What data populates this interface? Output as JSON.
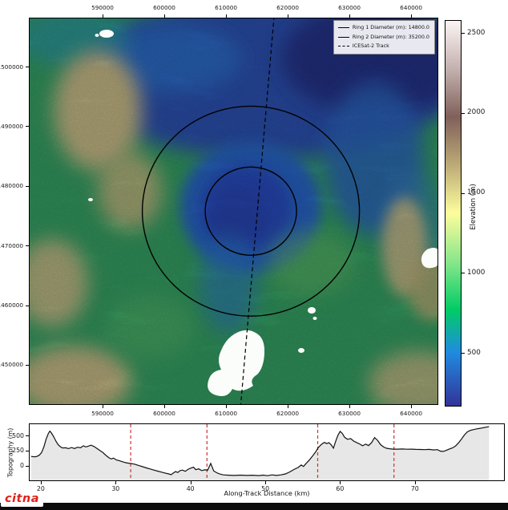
{
  "colors": {
    "ring": "#000000",
    "track": "#000000",
    "crossing_line": "#cc3333",
    "profile_line": "#111111",
    "profile_fill": "#e7e7e7",
    "watermark_red": "#e32119",
    "footer_bar": "#0c0c0c",
    "terrain_low": "#333399",
    "terrain_mid": "#00cc66",
    "terrain_high": "#ffffff"
  },
  "watermark": {
    "text": "citna"
  },
  "map": {
    "legend": {
      "items": [
        {
          "label": "Ring 1 Diameter (m): 14800.0",
          "style": "solid"
        },
        {
          "label": "Ring 2 Diameter (m): 35200.0",
          "style": "solid"
        },
        {
          "label": "ICESat-2 Track",
          "style": "dashed"
        }
      ]
    }
  },
  "colorbar": {
    "label": "Elevation (m)",
    "min": 165,
    "max": 2580,
    "ticks": [
      500,
      1000,
      1500,
      2000,
      2500
    ]
  },
  "chart_data": [
    {
      "type": "heatmap",
      "title": "",
      "description": "Shaded-relief elevation map with impact-structure rings and ICESat-2 ground track",
      "xlim": [
        578050,
        644400
      ],
      "ylim": [
        1443270,
        1508200
      ],
      "x_ticks": [
        590000,
        600000,
        610000,
        620000,
        630000,
        640000
      ],
      "y_ticks": [
        1500000,
        1490000,
        1480000,
        1470000,
        1460000,
        1450000
      ],
      "rings": {
        "center_x": 613900,
        "center_y": 1475900,
        "ring1_diameter_m": 14800.0,
        "ring2_diameter_m": 35200.0
      },
      "track": {
        "label": "ICESat-2 Track",
        "x_at_top": 617670,
        "x_at_bottom": 612215
      },
      "colorbar_label": "Elevation (m)",
      "legend_position": "upper right",
      "grid": false
    },
    {
      "type": "line",
      "xlabel": "Along-Track Distance (km)",
      "ylabel": "Topography (m)",
      "xlim": [
        18.4,
        81.8
      ],
      "ylim": [
        -233,
        700
      ],
      "x_ticks": [
        20,
        30,
        40,
        50,
        60,
        70
      ],
      "y_ticks": [
        0,
        250,
        500
      ],
      "ring_crossings_km": [
        31.9,
        42.1,
        56.9,
        67.1
      ],
      "points": [
        [
          18.6,
          165
        ],
        [
          19.0,
          158
        ],
        [
          19.3,
          162
        ],
        [
          19.7,
          185
        ],
        [
          20.0,
          230
        ],
        [
          20.3,
          320
        ],
        [
          20.6,
          450
        ],
        [
          20.9,
          545
        ],
        [
          21.1,
          585
        ],
        [
          21.3,
          555
        ],
        [
          21.6,
          495
        ],
        [
          21.9,
          420
        ],
        [
          22.2,
          360
        ],
        [
          22.5,
          325
        ],
        [
          22.8,
          305
        ],
        [
          23.2,
          308
        ],
        [
          23.6,
          295
        ],
        [
          24.0,
          312
        ],
        [
          24.4,
          296
        ],
        [
          24.8,
          318
        ],
        [
          25.2,
          308
        ],
        [
          25.6,
          342
        ],
        [
          25.9,
          322
        ],
        [
          26.3,
          338
        ],
        [
          26.6,
          352
        ],
        [
          27.0,
          330
        ],
        [
          27.4,
          298
        ],
        [
          27.8,
          262
        ],
        [
          28.2,
          228
        ],
        [
          28.6,
          182
        ],
        [
          29.0,
          142
        ],
        [
          29.3,
          122
        ],
        [
          29.6,
          136
        ],
        [
          30.0,
          106
        ],
        [
          30.4,
          92
        ],
        [
          30.8,
          76
        ],
        [
          31.2,
          62
        ],
        [
          31.6,
          52
        ],
        [
          32.0,
          46
        ],
        [
          32.5,
          32
        ],
        [
          33.0,
          12
        ],
        [
          33.5,
          -6
        ],
        [
          34.0,
          -26
        ],
        [
          34.5,
          -44
        ],
        [
          35.0,
          -62
        ],
        [
          35.5,
          -80
        ],
        [
          36.0,
          -96
        ],
        [
          36.5,
          -112
        ],
        [
          37.0,
          -126
        ],
        [
          37.3,
          -140
        ],
        [
          37.6,
          -112
        ],
        [
          37.9,
          -88
        ],
        [
          38.2,
          -102
        ],
        [
          38.5,
          -72
        ],
        [
          38.8,
          -62
        ],
        [
          39.2,
          -82
        ],
        [
          39.6,
          -48
        ],
        [
          40.0,
          -28
        ],
        [
          40.3,
          -14
        ],
        [
          40.6,
          -56
        ],
        [
          41.0,
          -42
        ],
        [
          41.4,
          -72
        ],
        [
          41.8,
          -58
        ],
        [
          42.2,
          -62
        ],
        [
          42.6,
          48
        ],
        [
          43.0,
          -76
        ],
        [
          43.4,
          -106
        ],
        [
          43.8,
          -128
        ],
        [
          44.3,
          -142
        ],
        [
          45.0,
          -148
        ],
        [
          45.8,
          -152
        ],
        [
          46.6,
          -146
        ],
        [
          47.4,
          -152
        ],
        [
          48.2,
          -148
        ],
        [
          49.0,
          -154
        ],
        [
          49.6,
          -146
        ],
        [
          50.2,
          -156
        ],
        [
          50.8,
          -142
        ],
        [
          51.4,
          -152
        ],
        [
          52.0,
          -142
        ],
        [
          52.6,
          -126
        ],
        [
          53.2,
          -92
        ],
        [
          53.8,
          -48
        ],
        [
          54.3,
          -18
        ],
        [
          54.7,
          22
        ],
        [
          55.0,
          -2
        ],
        [
          55.4,
          55
        ],
        [
          55.8,
          105
        ],
        [
          56.2,
          170
        ],
        [
          56.6,
          235
        ],
        [
          57.0,
          315
        ],
        [
          57.4,
          365
        ],
        [
          57.8,
          398
        ],
        [
          58.1,
          378
        ],
        [
          58.4,
          392
        ],
        [
          58.7,
          358
        ],
        [
          59.0,
          302
        ],
        [
          59.3,
          415
        ],
        [
          59.6,
          515
        ],
        [
          59.9,
          580
        ],
        [
          60.2,
          545
        ],
        [
          60.5,
          482
        ],
        [
          60.9,
          448
        ],
        [
          61.3,
          462
        ],
        [
          61.7,
          420
        ],
        [
          62.1,
          395
        ],
        [
          62.5,
          372
        ],
        [
          62.9,
          342
        ],
        [
          63.3,
          368
        ],
        [
          63.7,
          345
        ],
        [
          64.1,
          392
        ],
        [
          64.5,
          478
        ],
        [
          64.9,
          432
        ],
        [
          65.3,
          362
        ],
        [
          65.7,
          322
        ],
        [
          66.1,
          300
        ],
        [
          66.5,
          292
        ],
        [
          67.0,
          286
        ],
        [
          67.6,
          286
        ],
        [
          68.2,
          288
        ],
        [
          68.8,
          284
        ],
        [
          69.4,
          286
        ],
        [
          70.0,
          282
        ],
        [
          70.6,
          280
        ],
        [
          71.2,
          278
        ],
        [
          71.8,
          282
        ],
        [
          72.4,
          272
        ],
        [
          72.9,
          278
        ],
        [
          73.3,
          252
        ],
        [
          73.7,
          248
        ],
        [
          74.1,
          266
        ],
        [
          74.5,
          288
        ],
        [
          74.9,
          305
        ],
        [
          75.3,
          335
        ],
        [
          75.7,
          385
        ],
        [
          76.1,
          450
        ],
        [
          76.5,
          520
        ],
        [
          76.9,
          572
        ],
        [
          77.3,
          598
        ],
        [
          77.8,
          612
        ],
        [
          78.3,
          625
        ],
        [
          78.8,
          636
        ],
        [
          79.3,
          648
        ],
        [
          79.8,
          662
        ]
      ]
    }
  ]
}
